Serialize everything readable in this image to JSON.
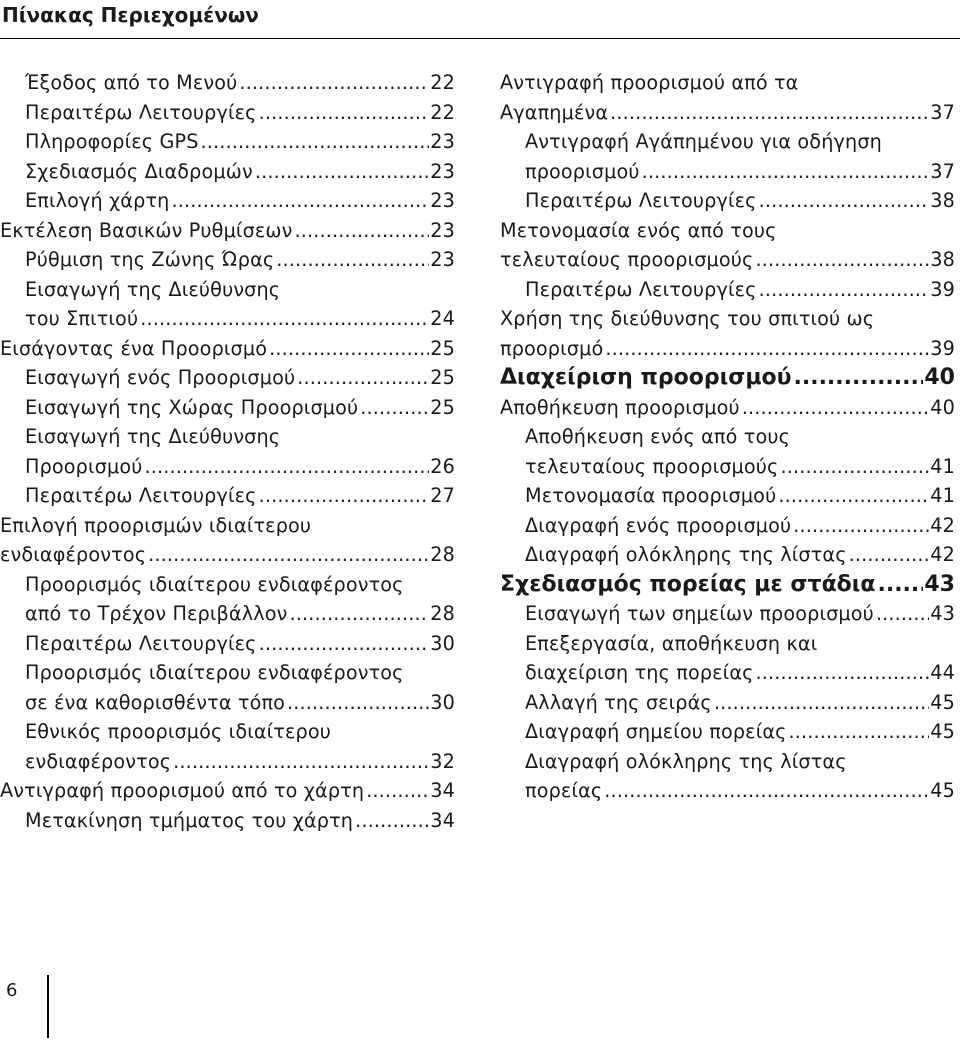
{
  "page_title": "Πίνακας Περιεχομένων",
  "page_number": "6",
  "left_column": [
    {
      "level": 2,
      "lines": [
        "Έξοδος από το Μενού"
      ],
      "page": "22"
    },
    {
      "level": 2,
      "lines": [
        "Περαιτέρω Λειτουργίες"
      ],
      "page": "22"
    },
    {
      "level": 2,
      "lines": [
        "Πληροφορίες GPS"
      ],
      "page": "23"
    },
    {
      "level": 2,
      "lines": [
        "Σχεδιασμός Διαδρομών"
      ],
      "page": "23"
    },
    {
      "level": 2,
      "lines": [
        "Επιλογή χάρτη"
      ],
      "page": "23"
    },
    {
      "level": 1,
      "lines": [
        "Εκτέλεση Βασικών Ρυθμίσεων"
      ],
      "page": "23"
    },
    {
      "level": 2,
      "lines": [
        "Ρύθμιση της Ζώνης Ώρας"
      ],
      "page": "23"
    },
    {
      "level": 2,
      "lines": [
        "Εισαγωγή της Διεύθυνσης",
        "του Σπιτιού"
      ],
      "page": "24"
    },
    {
      "level": 1,
      "lines": [
        "Εισάγοντας ένα Προορισμό"
      ],
      "page": "25"
    },
    {
      "level": 2,
      "lines": [
        "Εισαγωγή ενός Προορισμού"
      ],
      "page": "25"
    },
    {
      "level": 2,
      "lines": [
        "Εισαγωγή της Χώρας Προορισμού"
      ],
      "page": "25"
    },
    {
      "level": 2,
      "lines": [
        "Εισαγωγή της Διεύθυνσης",
        "Προορισμού"
      ],
      "page": "26"
    },
    {
      "level": 2,
      "lines": [
        "Περαιτέρω Λειτουργίες"
      ],
      "page": "27"
    },
    {
      "level": 1,
      "lines": [
        "Επιλογή προορισμών ιδιαίτερου",
        "ενδιαφέροντος"
      ],
      "page": "28"
    },
    {
      "level": 2,
      "lines": [
        "Προορισμός ιδιαίτερου ενδιαφέροντος",
        "από το Τρέχον Περιβάλλον"
      ],
      "page": "28"
    },
    {
      "level": 2,
      "lines": [
        "Περαιτέρω Λειτουργίες"
      ],
      "page": "30"
    },
    {
      "level": 2,
      "lines": [
        "Προορισμός ιδιαίτερου ενδιαφέροντος",
        "σε ένα καθορισθέντα τόπο"
      ],
      "page": "30"
    },
    {
      "level": 2,
      "lines": [
        "Εθνικός προορισμός ιδιαίτερου",
        "ενδιαφέροντος"
      ],
      "page": "32"
    },
    {
      "level": 1,
      "lines": [
        "Αντιγραφή προορισμού από το χάρτη"
      ],
      "page": "34"
    },
    {
      "level": 2,
      "lines": [
        "Μετακίνηση τμήματος του χάρτη"
      ],
      "page": "34"
    }
  ],
  "right_column": [
    {
      "level": 1,
      "lines": [
        "Αντιγραφή προορισμού από τα",
        "Αγαπημένα"
      ],
      "page": "37"
    },
    {
      "level": 2,
      "lines": [
        "Αντιγραφή Αγάπημένου για οδήγηση",
        "προορισμού"
      ],
      "page": "37"
    },
    {
      "level": 2,
      "lines": [
        "Περαιτέρω Λειτουργίες"
      ],
      "page": "38"
    },
    {
      "level": 1,
      "lines": [
        "Μετονομασία ενός από τους",
        "τελευταίους προορισμούς"
      ],
      "page": "38"
    },
    {
      "level": 2,
      "lines": [
        "Περαιτέρω Λειτουργίες"
      ],
      "page": "39"
    },
    {
      "level": 1,
      "lines": [
        "Χρήση της διεύθυνσης του σπιτιού ως",
        "προορισμό"
      ],
      "page": "39"
    },
    {
      "level": 0,
      "lines": [
        "Διαχείριση προορισμού"
      ],
      "page": "40"
    },
    {
      "level": 1,
      "lines": [
        "Αποθήκευση προορισμού"
      ],
      "page": "40"
    },
    {
      "level": 2,
      "lines": [
        "Αποθήκευση ενός από τους",
        "τελευταίους προορισμούς"
      ],
      "page": "41"
    },
    {
      "level": 2,
      "lines": [
        "Μετονομασία προορισμού"
      ],
      "page": "41"
    },
    {
      "level": 2,
      "lines": [
        "Διαγραφή ενός προορισμού"
      ],
      "page": "42"
    },
    {
      "level": 2,
      "lines": [
        "Διαγραφή ολόκληρης της λίστας"
      ],
      "page": "42"
    },
    {
      "level": 0,
      "lines": [
        "Σχεδιασμός πορείας με στάδια"
      ],
      "page": "43"
    },
    {
      "level": 2,
      "lines": [
        "Εισαγωγή των σημείων προορισμού"
      ],
      "page": "43"
    },
    {
      "level": 2,
      "lines": [
        "Επεξεργασία, αποθήκευση και",
        "διαχείριση της πορείας"
      ],
      "page": "44"
    },
    {
      "level": 2,
      "lines": [
        "Αλλαγή της σειράς"
      ],
      "page": "45"
    },
    {
      "level": 2,
      "lines": [
        "Διαγραφή σημείου πορείας"
      ],
      "page": "45"
    },
    {
      "level": 2,
      "lines": [
        "Διαγραφή ολόκληρης της λίστας",
        "πορείας"
      ],
      "page": "45"
    }
  ]
}
